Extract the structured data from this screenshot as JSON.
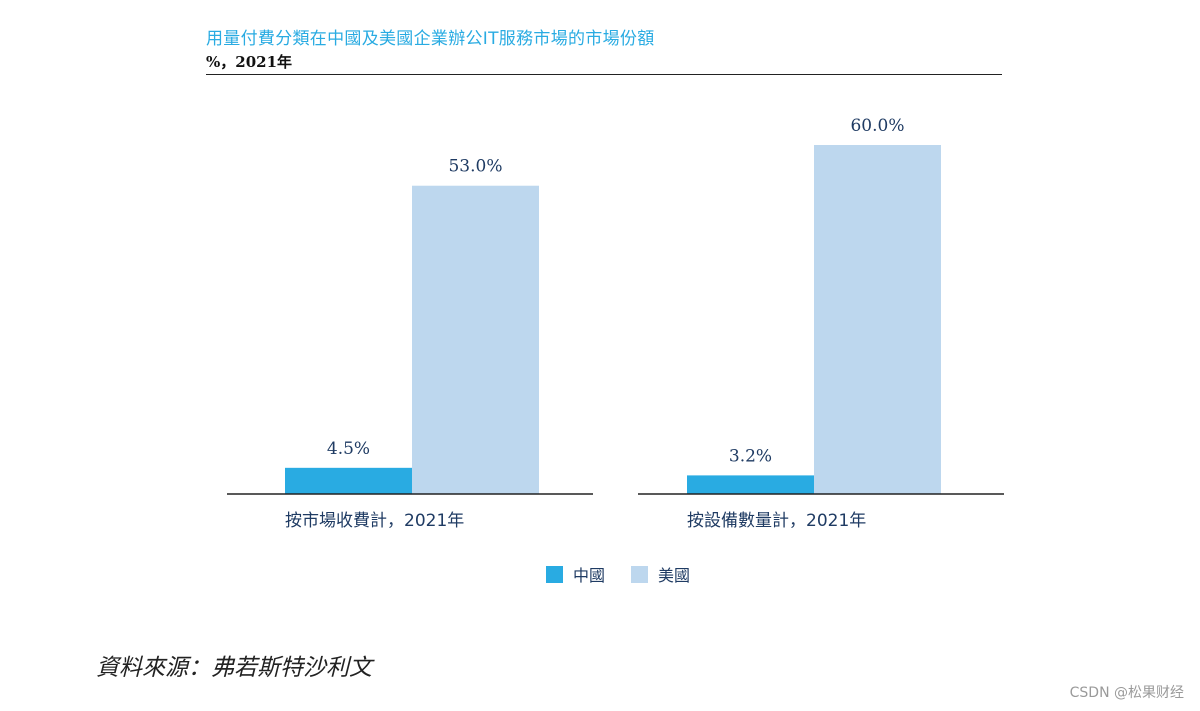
{
  "header": {
    "title": "用量付費分類在中國及美國企業辦公IT服務市場的市場份額",
    "unit": "%，2021年"
  },
  "chart_data": {
    "type": "bar",
    "title": "用量付費分類在中國及美國企業辦公IT服務市場的市場份額",
    "ylabel": "%，2021年",
    "categories": [
      "按市場收費計，2021年",
      "按設備數量計，2021年"
    ],
    "series": [
      {
        "name": "中國",
        "values": [
          4.5,
          3.2
        ],
        "labels": [
          "4.5%",
          "3.2%"
        ],
        "color": "#29abe2"
      },
      {
        "name": "美國",
        "values": [
          53.0,
          60.0
        ],
        "labels": [
          "53.0%",
          "60.0%"
        ],
        "color": "#bdd7ee"
      }
    ],
    "ylim": [
      0,
      60
    ],
    "grid": false,
    "legend": "bottom-center"
  },
  "legend": {
    "items": [
      {
        "label": "中國",
        "color": "#29abe2"
      },
      {
        "label": "美國",
        "color": "#bdd7ee"
      }
    ]
  },
  "source": "資料來源：弗若斯特沙利文",
  "watermark": "CSDN @松果财经",
  "colors": {
    "label_text": "#1f3b63",
    "axis": "#222222"
  }
}
